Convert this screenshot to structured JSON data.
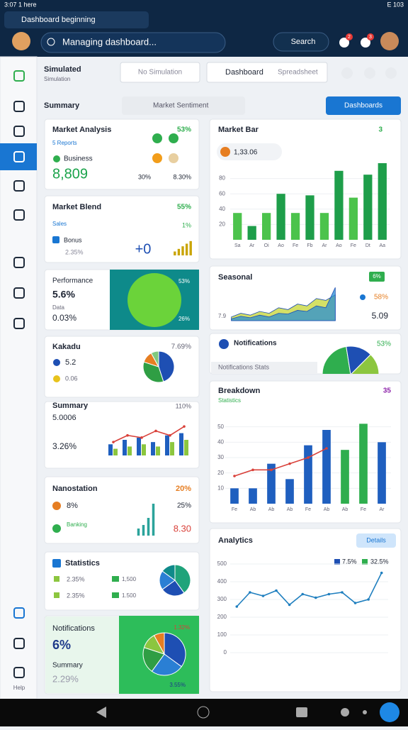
{
  "status": {
    "time": "3:07 1 here",
    "right": "E 103"
  },
  "tab": {
    "title": "Dashboard beginning"
  },
  "header": {
    "search": "Managing dashboard...",
    "button": "Search",
    "badges": [
      "2",
      "3"
    ]
  },
  "sidebar": {
    "help": "Help"
  },
  "toolbar": {
    "title": "Simulated",
    "subtitle": "Simulation",
    "input": "No Simulation",
    "button": "Dashboard",
    "button_hint": "Spreadsheet"
  },
  "section": {
    "label": "Summary",
    "chip": "Market Sentiment",
    "button": "Dashboards"
  },
  "left_cards": [
    {
      "title": "Market Analysis",
      "badge": "53%",
      "subtitle": "5 Reports",
      "label": "Business",
      "value": "8,809",
      "stats": [
        "30%",
        "8.30%"
      ]
    },
    {
      "title": "Market Blend",
      "badge": "55%",
      "subtitle": "Sales",
      "trend": "1%",
      "label": "Bonus",
      "value": "2.35%",
      "big": "+0",
      "chart": {
        "type": "bar",
        "values": [
          3,
          5,
          7,
          9,
          11
        ],
        "color": "#c9a400",
        "ylim": [
          0,
          12
        ]
      }
    },
    {
      "title": "Performance",
      "value": "5.6%",
      "label": "Data",
      "sub": "0.03%",
      "badge": "53%",
      "foot": "26%"
    },
    {
      "title": "Kakadu",
      "badge": "7.69%",
      "items": [
        "5.2",
        "0.06"
      ],
      "chart": {
        "type": "pie",
        "values": [
          45,
          35,
          12,
          8
        ],
        "colors": [
          "#1e4fb3",
          "#2f9e44",
          "#e67e22",
          "#7fc97f"
        ]
      }
    },
    {
      "title": "Summary",
      "value": "5.0006",
      "sub": "3.26%",
      "badge": "110%",
      "chart": {
        "type": "grouped-bar",
        "ylim": [
          0,
          14
        ],
        "series": [
          {
            "color": "#1f5fbf",
            "values": [
              5,
              7,
              8,
              6,
              9,
              10
            ]
          },
          {
            "color": "#8cc63f",
            "values": [
              3,
              4,
              5,
              4,
              6,
              7
            ]
          }
        ],
        "line": {
          "color": "#d9413a",
          "values": [
            6,
            9,
            8,
            11,
            9,
            13
          ]
        }
      }
    },
    {
      "title": "Nanostation",
      "badge": "20%",
      "items": [
        "8%",
        "25%"
      ],
      "note": "Banking",
      "value": "8.30",
      "chart": {
        "type": "bar",
        "values": [
          2,
          3,
          5,
          9
        ],
        "color": "#2ba39b",
        "ylim": [
          0,
          10
        ]
      }
    },
    {
      "title": "Statistics",
      "items": [
        "2.35%",
        "2.35%",
        "1,500",
        "1.500"
      ],
      "chart": {
        "type": "pie",
        "values": [
          40,
          25,
          20,
          15
        ],
        "colors": [
          "#1fa37a",
          "#1e4fb3",
          "#2a7fd4",
          "#0f8a8a"
        ]
      }
    },
    {
      "title": "Notifications",
      "value": "6%",
      "label": "Summary",
      "sub": "2.29%",
      "badge": "1.32%",
      "foot": "3.55%",
      "chart": {
        "type": "pie",
        "values": [
          35,
          25,
          20,
          12,
          8
        ],
        "colors": [
          "#1e4fb3",
          "#2a7fd4",
          "#2f9e44",
          "#8cc63f",
          "#e67e22"
        ]
      }
    }
  ],
  "right_cards": [
    {
      "title": "Market Bar",
      "badge": "3",
      "value": "1,33.06",
      "chart": {
        "type": "bar",
        "categories": [
          "Sa",
          "Ar",
          "Oi",
          "Ao",
          "Fe",
          "Fb",
          "Ar",
          "Ao",
          "Fe",
          "Dt",
          "Aa"
        ],
        "values": [
          35,
          18,
          35,
          60,
          35,
          58,
          35,
          90,
          55,
          85,
          100
        ],
        "colors": [
          "#4cc34c",
          "#1e9e4a",
          "#4cc34c",
          "#1e9e4a",
          "#4cc34c",
          "#1e9e4a",
          "#4cc34c",
          "#1e9e4a",
          "#4cc34c",
          "#1e9e4a",
          "#1e9e4a"
        ],
        "ylim": [
          0,
          100
        ],
        "yticks": [
          20,
          40,
          60,
          80
        ]
      }
    },
    {
      "title": "Seasonal",
      "badge": "6%",
      "stat": "58%",
      "value": "5.09",
      "axis_label": "7.9",
      "chart": {
        "type": "area",
        "ylim": [
          0,
          100
        ],
        "series": [
          {
            "color": "#c5d533",
            "values": [
              10,
              20,
              15,
              25,
              20,
              35,
              30,
              45,
              40,
              60,
              55,
              70
            ]
          },
          {
            "color": "#2a8fd4",
            "values": [
              5,
              12,
              8,
              15,
              10,
              20,
              18,
              28,
              25,
              40,
              35,
              90
            ]
          }
        ]
      }
    },
    {
      "title": "Notifications",
      "badge": "53%",
      "foot": "Notifications Stats",
      "chart": {
        "type": "pie",
        "values": [
          45,
          30,
          25
        ],
        "colors": [
          "#2fae4e",
          "#1e4fb3",
          "#8cc63f"
        ]
      }
    },
    {
      "title": "Breakdown",
      "badge": "35",
      "subtitle": "Statistics",
      "chart": {
        "type": "bar",
        "categories": [
          "Fe",
          "Ab",
          "Ab",
          "Ab",
          "Fe",
          "Ab",
          "Ab",
          "Fe",
          "Ar"
        ],
        "values": [
          10,
          10,
          26,
          16,
          38,
          48,
          35,
          52,
          40
        ],
        "colors": [
          "#1f5fbf",
          "#1f5fbf",
          "#1f5fbf",
          "#1f5fbf",
          "#1f5fbf",
          "#1f5fbf",
          "#2fae4e",
          "#2fae4e",
          "#1f5fbf"
        ],
        "ylim": [
          0,
          60
        ],
        "yticks": [
          10,
          20,
          30,
          40,
          50
        ],
        "line": {
          "color": "#d9413a",
          "values": [
            18,
            22,
            22,
            26,
            30,
            36,
            null,
            null,
            null
          ]
        }
      }
    },
    {
      "title": "Analytics",
      "button": "Details",
      "legend": [
        "7.5%",
        "32.5%"
      ],
      "chart": {
        "type": "line",
        "color": "#1f7fbf",
        "values": [
          260,
          340,
          320,
          350,
          270,
          330,
          310,
          330,
          340,
          280,
          300,
          450
        ],
        "ylim": [
          0,
          500
        ],
        "yticks": [
          0,
          100,
          200,
          300,
          400,
          500
        ]
      }
    }
  ]
}
